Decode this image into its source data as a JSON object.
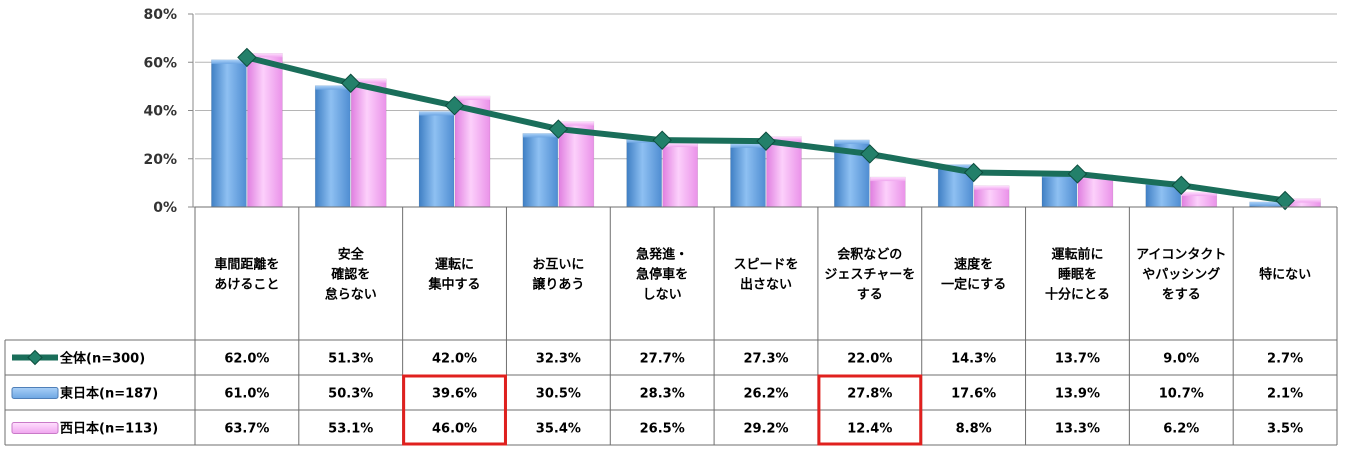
{
  "chart_data": {
    "type": "bar",
    "categories": [
      [
        "車間距離を",
        "あけること"
      ],
      [
        "安全",
        "確認を",
        "怠らない"
      ],
      [
        "運転に",
        "集中する"
      ],
      [
        "お互いに",
        "譲りあう"
      ],
      [
        "急発進・",
        "急停車を",
        "しない"
      ],
      [
        "スピードを",
        "出さない"
      ],
      [
        "会釈などの",
        "ジェスチャーを",
        "する"
      ],
      [
        "速度を",
        "一定にする"
      ],
      [
        "運転前に",
        "睡眠を",
        "十分にとる"
      ],
      [
        "アイコンタクト",
        "やパッシング",
        "をする"
      ],
      [
        "特にない"
      ]
    ],
    "series": [
      {
        "name": "全体(n=300)",
        "type": "line",
        "color": "#1a6e5a",
        "values": [
          62.0,
          51.3,
          42.0,
          32.3,
          27.7,
          27.3,
          22.0,
          14.3,
          13.7,
          9.0,
          2.7
        ],
        "labels": [
          "62.0%",
          "51.3%",
          "42.0%",
          "32.3%",
          "27.7%",
          "27.3%",
          "22.0%",
          "14.3%",
          "13.7%",
          "9.0%",
          "2.7%"
        ]
      },
      {
        "name": "東日本(n=187)",
        "type": "bar",
        "color": "#5f9fe0",
        "values": [
          61.0,
          50.3,
          39.6,
          30.5,
          28.3,
          26.2,
          27.8,
          17.6,
          13.9,
          10.7,
          2.1
        ],
        "labels": [
          "61.0%",
          "50.3%",
          "39.6%",
          "30.5%",
          "28.3%",
          "26.2%",
          "27.8%",
          "17.6%",
          "13.9%",
          "10.7%",
          "2.1%"
        ]
      },
      {
        "name": "西日本(n=113)",
        "type": "bar",
        "color": "#f2a2f0",
        "values": [
          63.7,
          53.1,
          46.0,
          35.4,
          26.5,
          29.2,
          12.4,
          8.8,
          13.3,
          6.2,
          3.5
        ],
        "labels": [
          "63.7%",
          "53.1%",
          "46.0%",
          "35.4%",
          "26.5%",
          "29.2%",
          "12.4%",
          "8.8%",
          "13.3%",
          "6.2%",
          "3.5%"
        ]
      }
    ],
    "ylim": [
      0,
      80
    ],
    "yticks": [
      0,
      20,
      40,
      60,
      80
    ],
    "ytick_labels": [
      "0%",
      "20%",
      "40%",
      "60%",
      "80%"
    ],
    "grid": true,
    "legend": "data-table-left",
    "highlighted_columns": [
      2,
      6
    ],
    "highlight_color": "#e0201e"
  }
}
